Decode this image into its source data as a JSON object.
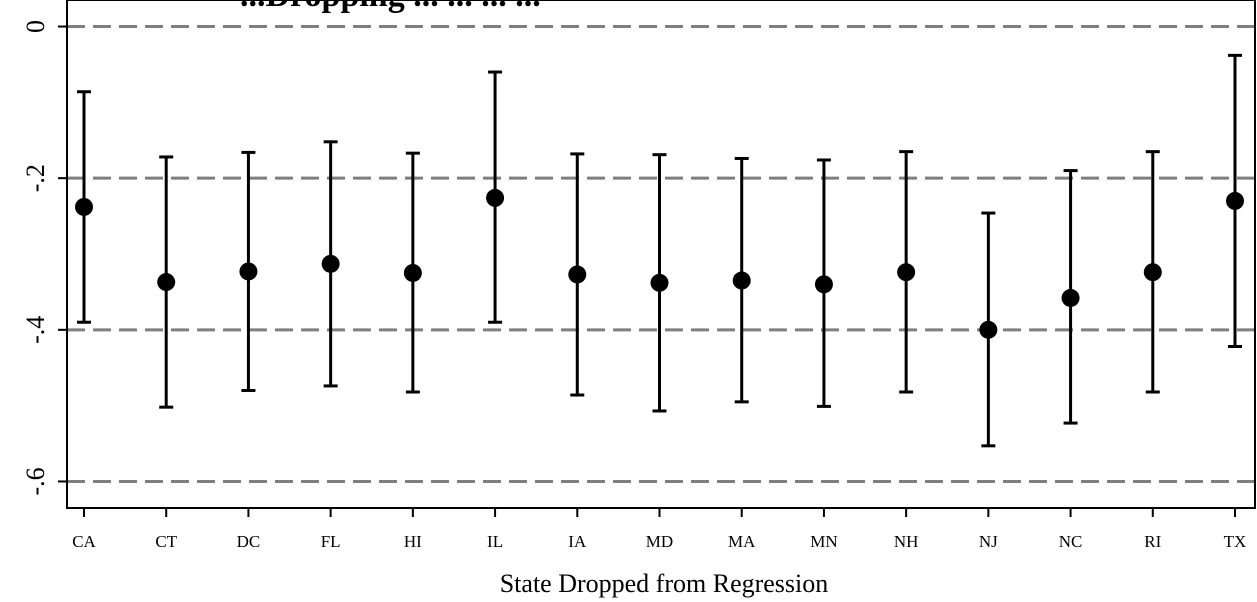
{
  "chart_data": {
    "type": "scatter",
    "title": "...Dropping ... ... ... ...",
    "xlabel": "State Dropped from Regression",
    "ylabel": "",
    "ylim": [
      -0.635,
      0.035
    ],
    "yticks": [
      0,
      -0.2,
      -0.4,
      -0.6
    ],
    "ytick_labels": [
      "0",
      "-.2",
      "-.4",
      "-.6"
    ],
    "reference_lines": [
      0,
      -0.2,
      -0.4,
      -0.6
    ],
    "grid": false,
    "legend": "none",
    "categories": [
      "CA",
      "CT",
      "DC",
      "FL",
      "HI",
      "IL",
      "IA",
      "MD",
      "MA",
      "MN",
      "NH",
      "NJ",
      "NC",
      "RI",
      "TX"
    ],
    "series": [
      {
        "estimate": [
          -0.238,
          -0.337,
          -0.323,
          -0.313,
          -0.325,
          -0.226,
          -0.327,
          -0.338,
          -0.335,
          -0.34,
          -0.324,
          -0.4,
          -0.358,
          -0.324,
          -0.23
        ],
        "ci_upper": [
          -0.086,
          -0.172,
          -0.166,
          -0.152,
          -0.167,
          -0.06,
          -0.168,
          -0.169,
          -0.174,
          -0.176,
          -0.165,
          -0.246,
          -0.19,
          -0.165,
          -0.038
        ],
        "ci_lower": [
          -0.39,
          -0.502,
          -0.48,
          -0.474,
          -0.482,
          -0.39,
          -0.486,
          -0.507,
          -0.495,
          -0.501,
          -0.482,
          -0.553,
          -0.523,
          -0.482,
          -0.422
        ]
      }
    ]
  },
  "colors": {
    "markers": "#000000",
    "reference_lines": "#7f7f7f",
    "frame": "#000000"
  }
}
